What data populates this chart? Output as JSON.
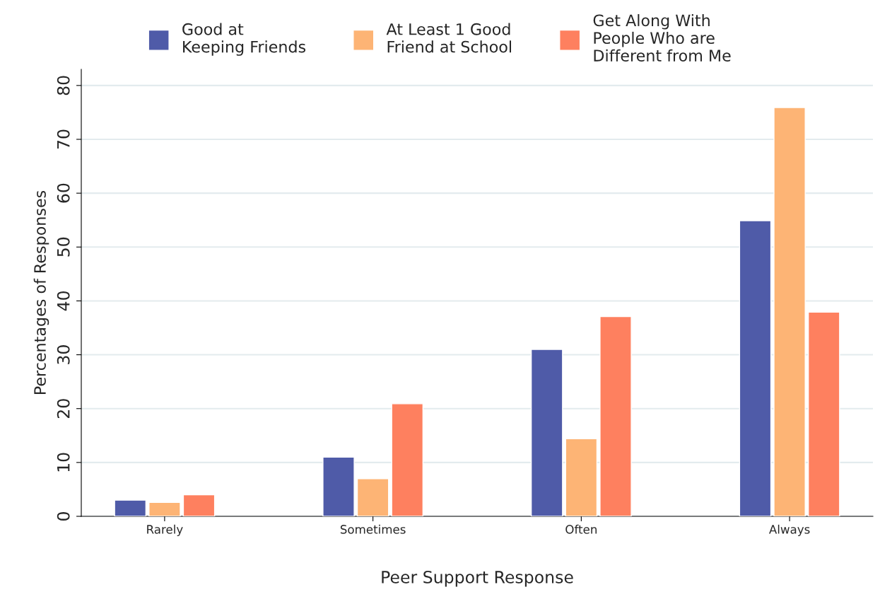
{
  "chart_data": {
    "type": "bar",
    "xlabel": "Peer Support Response",
    "ylabel": "Percentages of Responses",
    "categories": [
      "Rarely",
      "Sometimes",
      "Often",
      "Always"
    ],
    "series": [
      {
        "name": "Good at\nKeeping Friends",
        "color": "#4f5ba8",
        "values": [
          3.0,
          11.0,
          31.0,
          54.9
        ]
      },
      {
        "name": "At Least 1 Good\nFriend at School",
        "color": "#fdb475",
        "values": [
          2.6,
          7.0,
          14.4,
          75.9
        ]
      },
      {
        "name": "Get Along With\nPeople Who are\nDifferent from Me",
        "color": "#fe805f",
        "values": [
          4.0,
          20.9,
          37.1,
          37.9
        ]
      }
    ],
    "ylim": [
      0,
      83
    ],
    "yticks": [
      0,
      10,
      20,
      30,
      40,
      50,
      60,
      70,
      80
    ],
    "grid": "y",
    "legend": "top"
  }
}
